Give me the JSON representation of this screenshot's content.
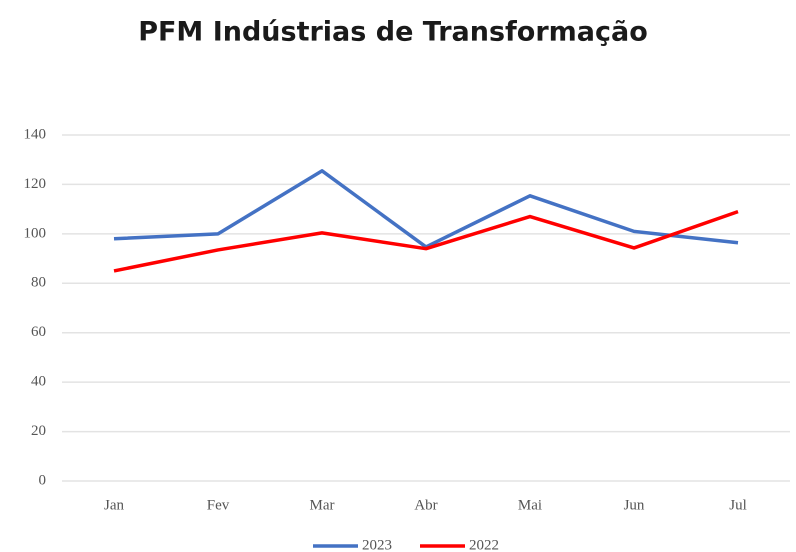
{
  "chart_data": {
    "type": "line",
    "title": "PFM Indústrias de Transformação",
    "categories": [
      "Jan",
      "Fev",
      "Mar",
      "Abr",
      "Mai",
      "Jun",
      "Jul"
    ],
    "series": [
      {
        "name": "2023",
        "color": "#4472c4",
        "values": [
          98,
          100,
          125.5,
          94.7,
          115.4,
          101,
          96.4
        ]
      },
      {
        "name": "2022",
        "color": "#ff0000",
        "values": [
          85,
          93.5,
          100.4,
          94,
          107,
          94.3,
          109
        ]
      }
    ],
    "ylim": [
      0,
      140
    ],
    "yticks": [
      0,
      20,
      40,
      60,
      80,
      100,
      120,
      140
    ],
    "grid": true,
    "legend": "bottom"
  }
}
